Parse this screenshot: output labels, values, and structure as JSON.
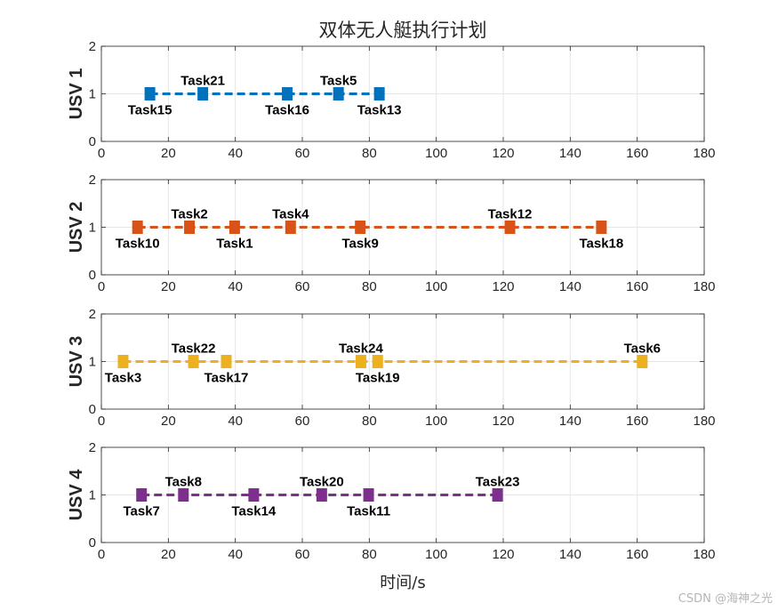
{
  "chart_data": {
    "type": "scatter",
    "title": "双体无人艇执行计划",
    "xlabel": "时间/s",
    "xlim": [
      0,
      180
    ],
    "xticks": [
      "0",
      "20",
      "40",
      "60",
      "80",
      "100",
      "120",
      "140",
      "160",
      "180"
    ],
    "ylim": [
      0,
      2
    ],
    "yticks": [
      "0",
      "1",
      "2"
    ],
    "grid": true,
    "line_style": "dashed",
    "marker": "square",
    "panels": [
      {
        "ylabel": "USV 1",
        "color": "#0072BD",
        "tasks": [
          {
            "name": "Task15",
            "x": 14.5,
            "y": 1,
            "label_pos": "below"
          },
          {
            "name": "Task21",
            "x": 30.3,
            "y": 1,
            "label_pos": "above"
          },
          {
            "name": "Task16",
            "x": 55.5,
            "y": 1,
            "label_pos": "below"
          },
          {
            "name": "Task5",
            "x": 70.8,
            "y": 1,
            "label_pos": "above"
          },
          {
            "name": "Task13",
            "x": 83.0,
            "y": 1,
            "label_pos": "below"
          }
        ]
      },
      {
        "ylabel": "USV 2",
        "color": "#D95319",
        "tasks": [
          {
            "name": "Task10",
            "x": 10.8,
            "y": 1,
            "label_pos": "below"
          },
          {
            "name": "Task2",
            "x": 26.3,
            "y": 1,
            "label_pos": "above"
          },
          {
            "name": "Task1",
            "x": 39.8,
            "y": 1,
            "label_pos": "below"
          },
          {
            "name": "Task4",
            "x": 56.5,
            "y": 1,
            "label_pos": "above"
          },
          {
            "name": "Task9",
            "x": 77.3,
            "y": 1,
            "label_pos": "below"
          },
          {
            "name": "Task12",
            "x": 122.0,
            "y": 1,
            "label_pos": "above"
          },
          {
            "name": "Task18",
            "x": 149.3,
            "y": 1,
            "label_pos": "below"
          }
        ]
      },
      {
        "ylabel": "USV 3",
        "color": "#EDB120",
        "tasks": [
          {
            "name": "Task3",
            "x": 6.5,
            "y": 1,
            "label_pos": "below"
          },
          {
            "name": "Task22",
            "x": 27.5,
            "y": 1,
            "label_pos": "above"
          },
          {
            "name": "Task17",
            "x": 37.3,
            "y": 1,
            "label_pos": "below"
          },
          {
            "name": "Task24",
            "x": 77.5,
            "y": 1,
            "label_pos": "above"
          },
          {
            "name": "Task19",
            "x": 82.5,
            "y": 1,
            "label_pos": "below"
          },
          {
            "name": "Task6",
            "x": 161.5,
            "y": 1,
            "label_pos": "above"
          }
        ]
      },
      {
        "ylabel": "USV 4",
        "color": "#7E2F8E",
        "tasks": [
          {
            "name": "Task7",
            "x": 12.0,
            "y": 1,
            "label_pos": "below"
          },
          {
            "name": "Task8",
            "x": 24.5,
            "y": 1,
            "label_pos": "above"
          },
          {
            "name": "Task14",
            "x": 45.5,
            "y": 1,
            "label_pos": "below"
          },
          {
            "name": "Task20",
            "x": 65.8,
            "y": 1,
            "label_pos": "above"
          },
          {
            "name": "Task11",
            "x": 79.8,
            "y": 1,
            "label_pos": "below"
          },
          {
            "name": "Task23",
            "x": 118.3,
            "y": 1,
            "label_pos": "above"
          }
        ]
      }
    ]
  },
  "watermark": "CSDN @海神之光"
}
